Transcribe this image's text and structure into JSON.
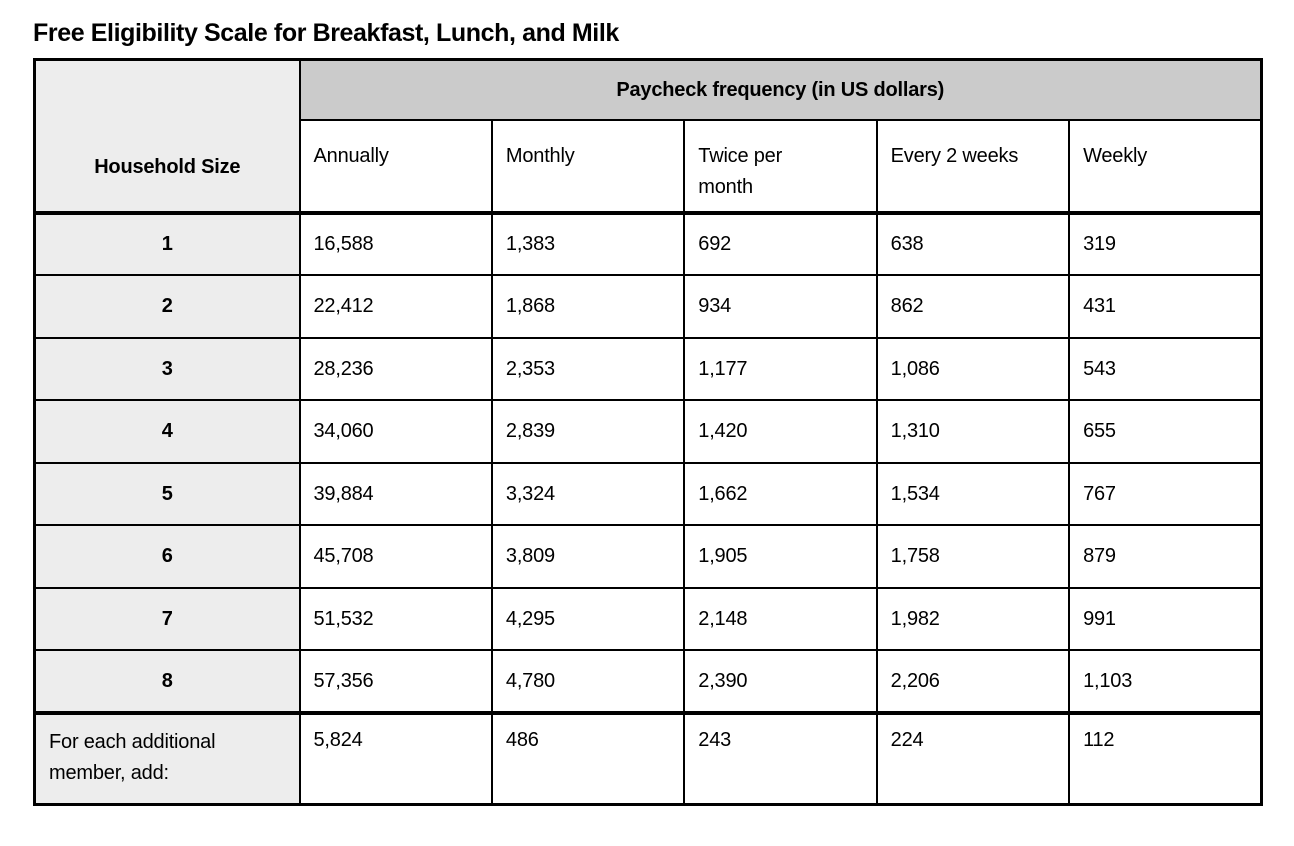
{
  "title": "Free Eligibility Scale for Breakfast, Lunch, and Milk",
  "table": {
    "corner_header": "Household Size",
    "group_header": "Paycheck frequency (in US dollars)",
    "columns": [
      "Annually",
      "Monthly",
      "Twice per month",
      "Every 2 weeks",
      "Weekly"
    ],
    "rows": [
      {
        "label": "1",
        "values": [
          "16,588",
          "1,383",
          "692",
          "638",
          "319"
        ]
      },
      {
        "label": "2",
        "values": [
          "22,412",
          "1,868",
          "934",
          "862",
          "431"
        ]
      },
      {
        "label": "3",
        "values": [
          "28,236",
          "2,353",
          "1,177",
          "1,086",
          "543"
        ]
      },
      {
        "label": "4",
        "values": [
          "34,060",
          "2,839",
          "1,420",
          "1,310",
          "655"
        ]
      },
      {
        "label": "5",
        "values": [
          "39,884",
          "3,324",
          "1,662",
          "1,534",
          "767"
        ]
      },
      {
        "label": "6",
        "values": [
          "45,708",
          "3,809",
          "1,905",
          "1,758",
          "879"
        ]
      },
      {
        "label": "7",
        "values": [
          "51,532",
          "4,295",
          "2,148",
          "1,982",
          "991"
        ]
      },
      {
        "label": "8",
        "values": [
          "57,356",
          "4,780",
          "2,390",
          "2,206",
          "1,103"
        ]
      }
    ],
    "footer_row": {
      "label": "For each additional member, add:",
      "values": [
        "5,824",
        "486",
        "243",
        "224",
        "112"
      ]
    },
    "colors": {
      "group_header_bg": "#cbcbcb",
      "label_column_bg": "#ededed",
      "border": "#000000"
    }
  }
}
